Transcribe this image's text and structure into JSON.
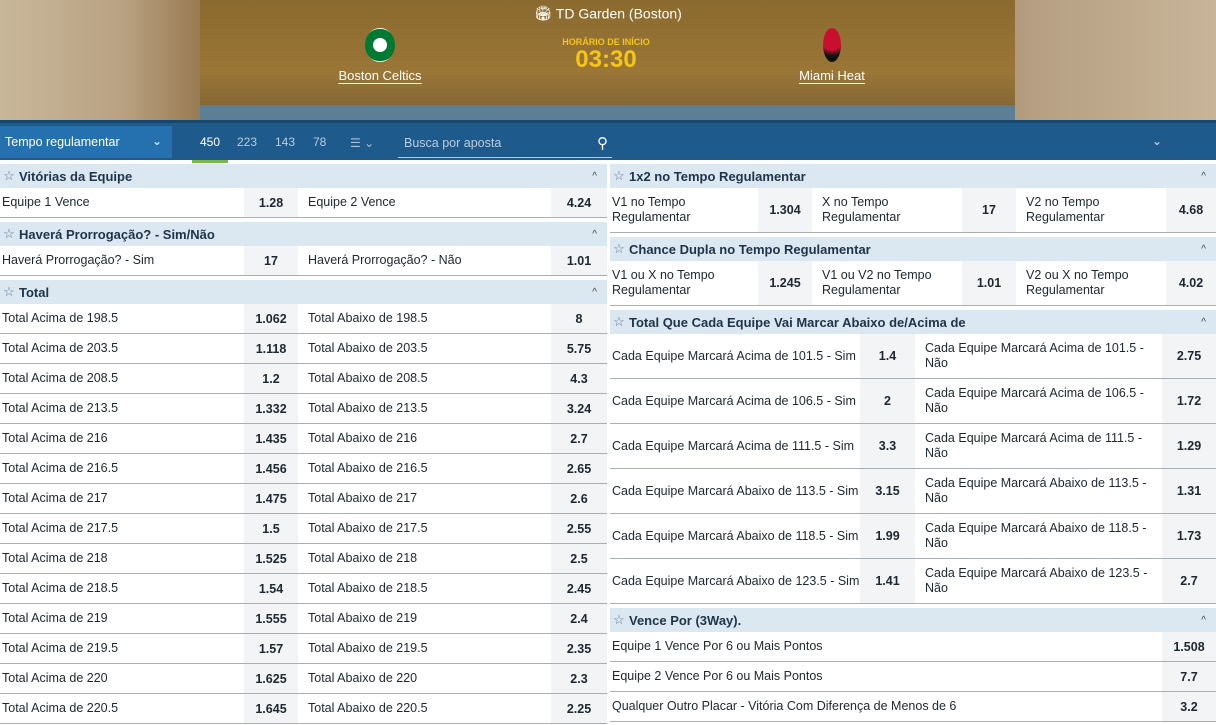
{
  "event": {
    "venue": "TD Garden (Boston)",
    "team1": "Boston Celtics",
    "team2": "Miami Heat",
    "start_label": "HORÁRIO DE INÍCIO",
    "start_time": "03:30"
  },
  "toolbar": {
    "period": "Tempo regulamentar",
    "counts": [
      "450",
      "223",
      "143",
      "78"
    ],
    "search_placeholder": "Busca por aposta"
  },
  "left": [
    {
      "title": "Vitórias da Equipe",
      "rows": [
        [
          "Equipe 1 Vence",
          "1.28",
          "Equipe 2 Vence",
          "4.24"
        ]
      ]
    },
    {
      "title": "Haverá Prorrogação? -  Sim/Não",
      "rows": [
        [
          "Haverá Prorrogação? - Sim",
          "17",
          "Haverá Prorrogação? - Não",
          "1.01"
        ]
      ]
    },
    {
      "title": "Total",
      "rows": [
        [
          "Total Acima de 198.5",
          "1.062",
          "Total Abaixo de 198.5",
          "8"
        ],
        [
          "Total Acima de 203.5",
          "1.118",
          "Total Abaixo de 203.5",
          "5.75"
        ],
        [
          "Total Acima de 208.5",
          "1.2",
          "Total Abaixo de 208.5",
          "4.3"
        ],
        [
          "Total Acima de 213.5",
          "1.332",
          "Total Abaixo de 213.5",
          "3.24"
        ],
        [
          "Total Acima de 216",
          "1.435",
          "Total Abaixo de 216",
          "2.7"
        ],
        [
          "Total Acima de 216.5",
          "1.456",
          "Total Abaixo de 216.5",
          "2.65"
        ],
        [
          "Total Acima de 217",
          "1.475",
          "Total Abaixo de 217",
          "2.6"
        ],
        [
          "Total Acima de 217.5",
          "1.5",
          "Total Abaixo de 217.5",
          "2.55"
        ],
        [
          "Total Acima de 218",
          "1.525",
          "Total Abaixo de 218",
          "2.5"
        ],
        [
          "Total Acima de 218.5",
          "1.54",
          "Total Abaixo de 218.5",
          "2.45"
        ],
        [
          "Total Acima de 219",
          "1.555",
          "Total Abaixo de 219",
          "2.4"
        ],
        [
          "Total Acima de 219.5",
          "1.57",
          "Total Abaixo de 219.5",
          "2.35"
        ],
        [
          "Total Acima de 220",
          "1.625",
          "Total Abaixo de 220",
          "2.3"
        ],
        [
          "Total Acima de 220.5",
          "1.645",
          "Total Abaixo de 220.5",
          "2.25"
        ]
      ]
    }
  ],
  "right": [
    {
      "title": "1x2 no Tempo Regulamentar",
      "rows": [
        [
          "V1 no Tempo Regulamentar",
          "1.304",
          "X no Tempo Regulamentar",
          "17",
          "V2 no Tempo Regulamentar",
          "4.68"
        ]
      ]
    },
    {
      "title": "Chance Dupla no Tempo Regulamentar",
      "rows": [
        [
          "V1 ou X no Tempo Regulamentar",
          "1.245",
          "V1 ou V2 no Tempo Regulamentar",
          "1.01",
          "V2 ou X no Tempo Regulamentar",
          "4.02"
        ]
      ]
    },
    {
      "title": "Total Que Cada Equipe Vai Marcar Abaixo de/Acima de",
      "rows": [
        [
          "Cada Equipe Marcará Acima de 101.5 - Sim",
          "1.4",
          "Cada Equipe Marcará Acima de 101.5 - Não",
          "2.75"
        ],
        [
          "Cada Equipe Marcará Acima de 106.5 - Sim",
          "2",
          "Cada Equipe Marcará Acima de 106.5 - Não",
          "1.72"
        ],
        [
          "Cada Equipe Marcará Acima de 111.5 - Sim",
          "3.3",
          "Cada Equipe Marcará Acima de 111.5 - Não",
          "1.29"
        ],
        [
          "Cada Equipe Marcará Abaixo de 113.5 - Sim",
          "3.15",
          "Cada Equipe Marcará Abaixo de 113.5 - Não",
          "1.31"
        ],
        [
          "Cada Equipe Marcará Abaixo de 118.5 - Sim",
          "1.99",
          "Cada Equipe Marcará Abaixo de 118.5 - Não",
          "1.73"
        ],
        [
          "Cada Equipe Marcará Abaixo de 123.5 - Sim",
          "1.41",
          "Cada Equipe Marcará Abaixo de 123.5 - Não",
          "2.7"
        ]
      ]
    },
    {
      "title": "Vence Por (3Way).",
      "rows": [
        [
          "Equipe 1 Vence Por 6 ou Mais Pontos",
          "1.508"
        ],
        [
          "Equipe 2 Vence Por 6 ou Mais Pontos",
          "7.7"
        ],
        [
          "Qualquer Outro Placar - Vitória Com Diferença de Menos de 6",
          "3.2"
        ]
      ]
    }
  ]
}
